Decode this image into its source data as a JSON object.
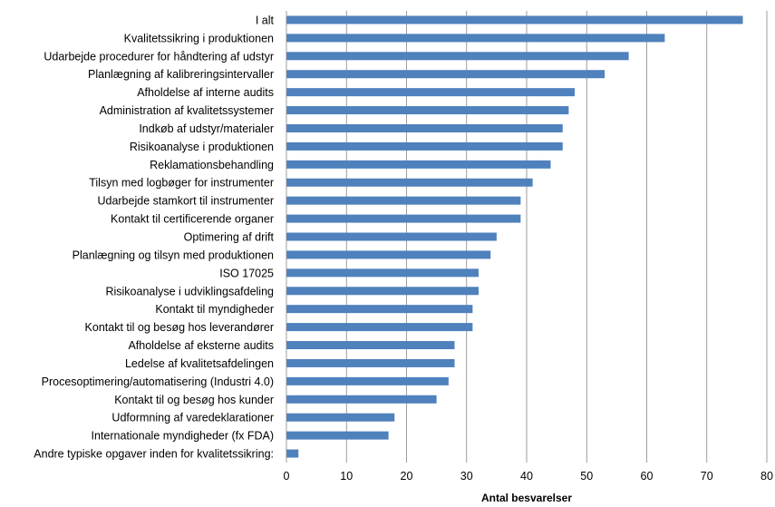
{
  "chart_data": {
    "type": "bar",
    "orientation": "horizontal",
    "categories": [
      "I alt",
      "Kvalitetssikring i produktionen",
      "Udarbejde procedurer for håndtering af udstyr",
      "Planlægning af kalibreringsintervaller",
      "Afholdelse af interne audits",
      "Administration af kvalitetssystemer",
      "Indkøb af udstyr/materialer",
      "Risikoanalyse i produktionen",
      "Reklamationsbehandling",
      "Tilsyn med logbøger for instrumenter",
      "Udarbejde stamkort til instrumenter",
      "Kontakt til certificerende organer",
      "Optimering af drift",
      "Planlægning og tilsyn med produktionen",
      "ISO 17025",
      "Risikoanalyse i udviklingsafdeling",
      "Kontakt til myndigheder",
      "Kontakt til og besøg hos leverandører",
      "Afholdelse af eksterne audits",
      "Ledelse af kvalitetsafdelingen",
      "Procesoptimering/automatisering (Industri 4.0)",
      "Kontakt til og besøg hos kunder",
      "Udformning af varedeklarationer",
      "Internationale myndigheder (fx FDA)",
      "Andre typiske opgaver inden for kvalitetssikring:"
    ],
    "values": [
      76,
      63,
      57,
      53,
      48,
      47,
      46,
      46,
      44,
      41,
      39,
      39,
      35,
      34,
      32,
      32,
      31,
      31,
      28,
      28,
      27,
      25,
      18,
      17,
      2
    ],
    "xlabel": "Antal besvarelser",
    "xlim": [
      0,
      80
    ],
    "xticks": [
      0,
      10,
      20,
      30,
      40,
      50,
      60,
      70,
      80
    ],
    "grid": "vertical",
    "legend": "none",
    "bar_color": "#4F81BD",
    "grid_color": "#868686"
  }
}
